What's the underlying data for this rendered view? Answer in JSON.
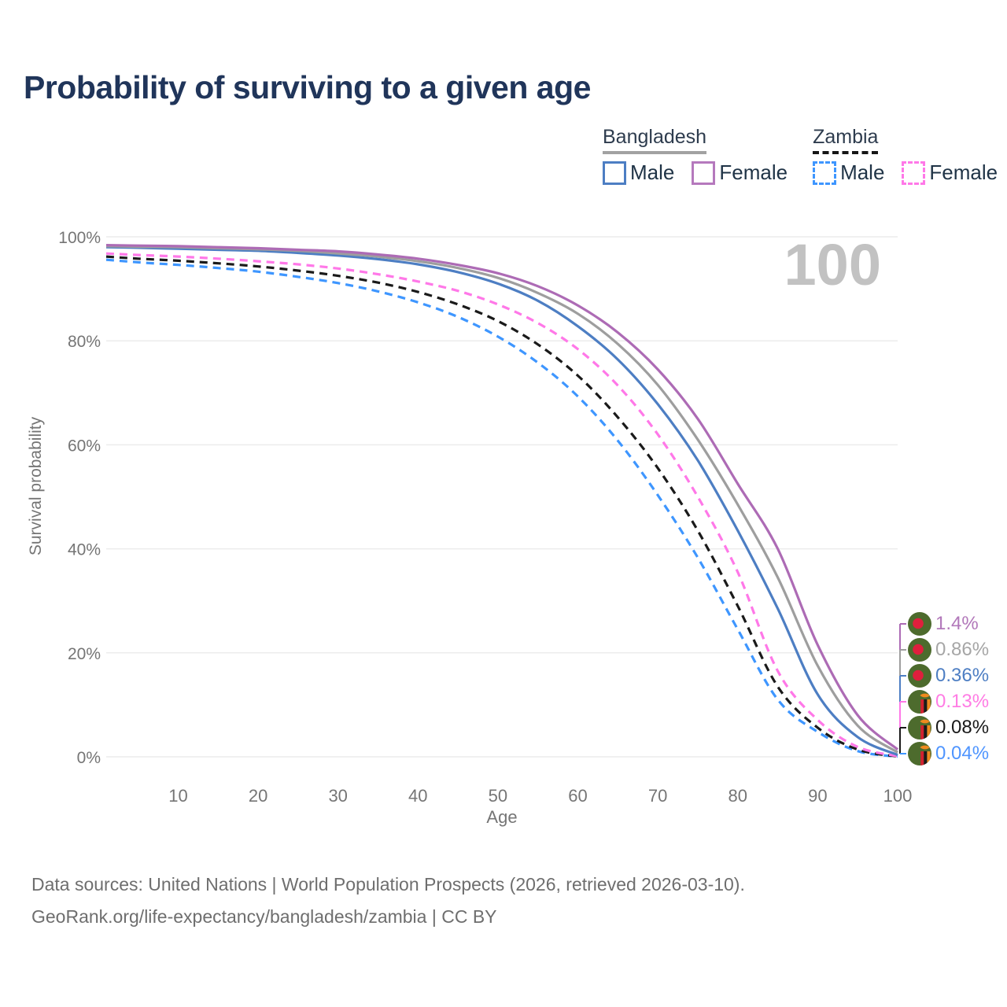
{
  "title": "Probability of surviving to a given age",
  "legend": {
    "groups": [
      {
        "title": "Bangladesh",
        "style": "solid",
        "items": [
          {
            "label": "Male",
            "color": "#4d7ec3"
          },
          {
            "label": "Female",
            "color": "#b579bd"
          }
        ]
      },
      {
        "title": "Zambia",
        "style": "dashed",
        "items": [
          {
            "label": "Male",
            "color": "#3e96ff"
          },
          {
            "label": "Female",
            "color": "#ff78e8"
          }
        ]
      }
    ]
  },
  "watermark": "100",
  "axes": {
    "y_title": "Survival probability",
    "x_title": "Age",
    "y_tick_labels": [
      "0%",
      "20%",
      "40%",
      "60%",
      "80%",
      "100%"
    ],
    "x_tick_labels": [
      "10",
      "20",
      "30",
      "40",
      "50",
      "60",
      "70",
      "80",
      "90",
      "100"
    ]
  },
  "footer": {
    "line1": "Data sources: United Nations | World Population Prospects (2026, retrieved 2026-03-10).",
    "line2": "GeoRank.org/life-expectancy/bangladesh/zambia | CC BY"
  },
  "flag_colors": {
    "bangladesh": {
      "field": "#4d6b2d",
      "disc": "#df1f3d"
    },
    "zambia": {
      "field": "#4d6b2d",
      "red": "#d2202f",
      "black": "#1a1a1a",
      "orange": "#ef8a1e"
    }
  },
  "chart_data": {
    "type": "line",
    "title": "Probability of surviving to a given age",
    "xlabel": "Age",
    "ylabel": "Survival probability",
    "xlim": [
      1,
      100
    ],
    "ylim": [
      0,
      100
    ],
    "x_ticks": [
      10,
      20,
      30,
      40,
      50,
      60,
      70,
      80,
      90,
      100
    ],
    "y_ticks": [
      0,
      20,
      40,
      60,
      80,
      100
    ],
    "grid": true,
    "legend_position": "top-right",
    "watermark_age": "100",
    "ages": [
      1,
      5,
      10,
      15,
      20,
      25,
      30,
      35,
      40,
      45,
      50,
      55,
      60,
      65,
      70,
      75,
      80,
      85,
      90,
      95,
      100
    ],
    "series": [
      {
        "name": "Bangladesh Female",
        "country": "Bangladesh",
        "sex": "Female",
        "style": "solid",
        "color": "#ad6bb5",
        "label_color": "#b278ba",
        "end_label": "1.4%",
        "flag": "bangladesh",
        "values": [
          98.4,
          98.3,
          98.2,
          98.0,
          97.8,
          97.5,
          97.2,
          96.6,
          95.8,
          94.6,
          93.0,
          90.5,
          86.8,
          81.6,
          74.5,
          65.0,
          52.5,
          40.0,
          21.5,
          8.0,
          1.4
        ]
      },
      {
        "name": "Bangladesh",
        "country": "Bangladesh",
        "sex": "Both",
        "style": "solid",
        "color": "#9e9e9e",
        "label_color": "#a6a6a6",
        "end_label": "0.86%",
        "flag": "bangladesh",
        "values": [
          98.2,
          98.1,
          98.0,
          97.8,
          97.6,
          97.3,
          96.8,
          96.2,
          95.3,
          94.0,
          92.1,
          89.2,
          85.2,
          79.4,
          71.5,
          61.0,
          48.5,
          34.5,
          17.5,
          6.0,
          0.86
        ]
      },
      {
        "name": "Bangladesh Male",
        "country": "Bangladesh",
        "sex": "Male",
        "style": "solid",
        "color": "#4d7ec3",
        "label_color": "#4d7ec3",
        "end_label": "0.36%",
        "flag": "bangladesh",
        "values": [
          98.0,
          97.9,
          97.7,
          97.5,
          97.3,
          96.9,
          96.4,
          95.7,
          94.7,
          93.2,
          91.0,
          87.7,
          82.8,
          76.4,
          67.8,
          57.0,
          43.5,
          28.5,
          12.0,
          3.8,
          0.36
        ]
      },
      {
        "name": "Zambia Female",
        "country": "Zambia",
        "sex": "Female",
        "style": "dashed",
        "color": "#ff78e8",
        "label_color": "#ff7ce4",
        "end_label": "0.13%",
        "flag": "zambia",
        "values": [
          96.8,
          96.5,
          96.2,
          95.8,
          95.3,
          94.7,
          93.9,
          92.8,
          91.4,
          89.6,
          87.0,
          83.4,
          78.4,
          71.4,
          62.0,
          50.0,
          35.5,
          16.5,
          7.1,
          1.9,
          0.13
        ]
      },
      {
        "name": "Zambia",
        "country": "Zambia",
        "sex": "Both",
        "style": "dashed",
        "color": "#1a1a1a",
        "label_color": "#1a1a1a",
        "end_label": "0.08%",
        "flag": "zambia",
        "values": [
          96.2,
          95.8,
          95.4,
          94.9,
          94.3,
          93.5,
          92.5,
          91.2,
          89.4,
          87.0,
          83.8,
          79.3,
          73.3,
          65.3,
          55.5,
          43.5,
          29.0,
          13.5,
          5.6,
          1.4,
          0.08
        ]
      },
      {
        "name": "Zambia Male",
        "country": "Zambia",
        "sex": "Male",
        "style": "dashed",
        "color": "#3e96ff",
        "label_color": "#4f95ff",
        "end_label": "0.04%",
        "flag": "zambia",
        "values": [
          95.6,
          95.1,
          94.6,
          94.0,
          93.3,
          92.3,
          91.1,
          89.5,
          87.4,
          84.6,
          80.8,
          75.8,
          69.3,
          60.8,
          50.3,
          38.3,
          24.5,
          11.0,
          4.8,
          1.1,
          0.04
        ]
      }
    ]
  }
}
